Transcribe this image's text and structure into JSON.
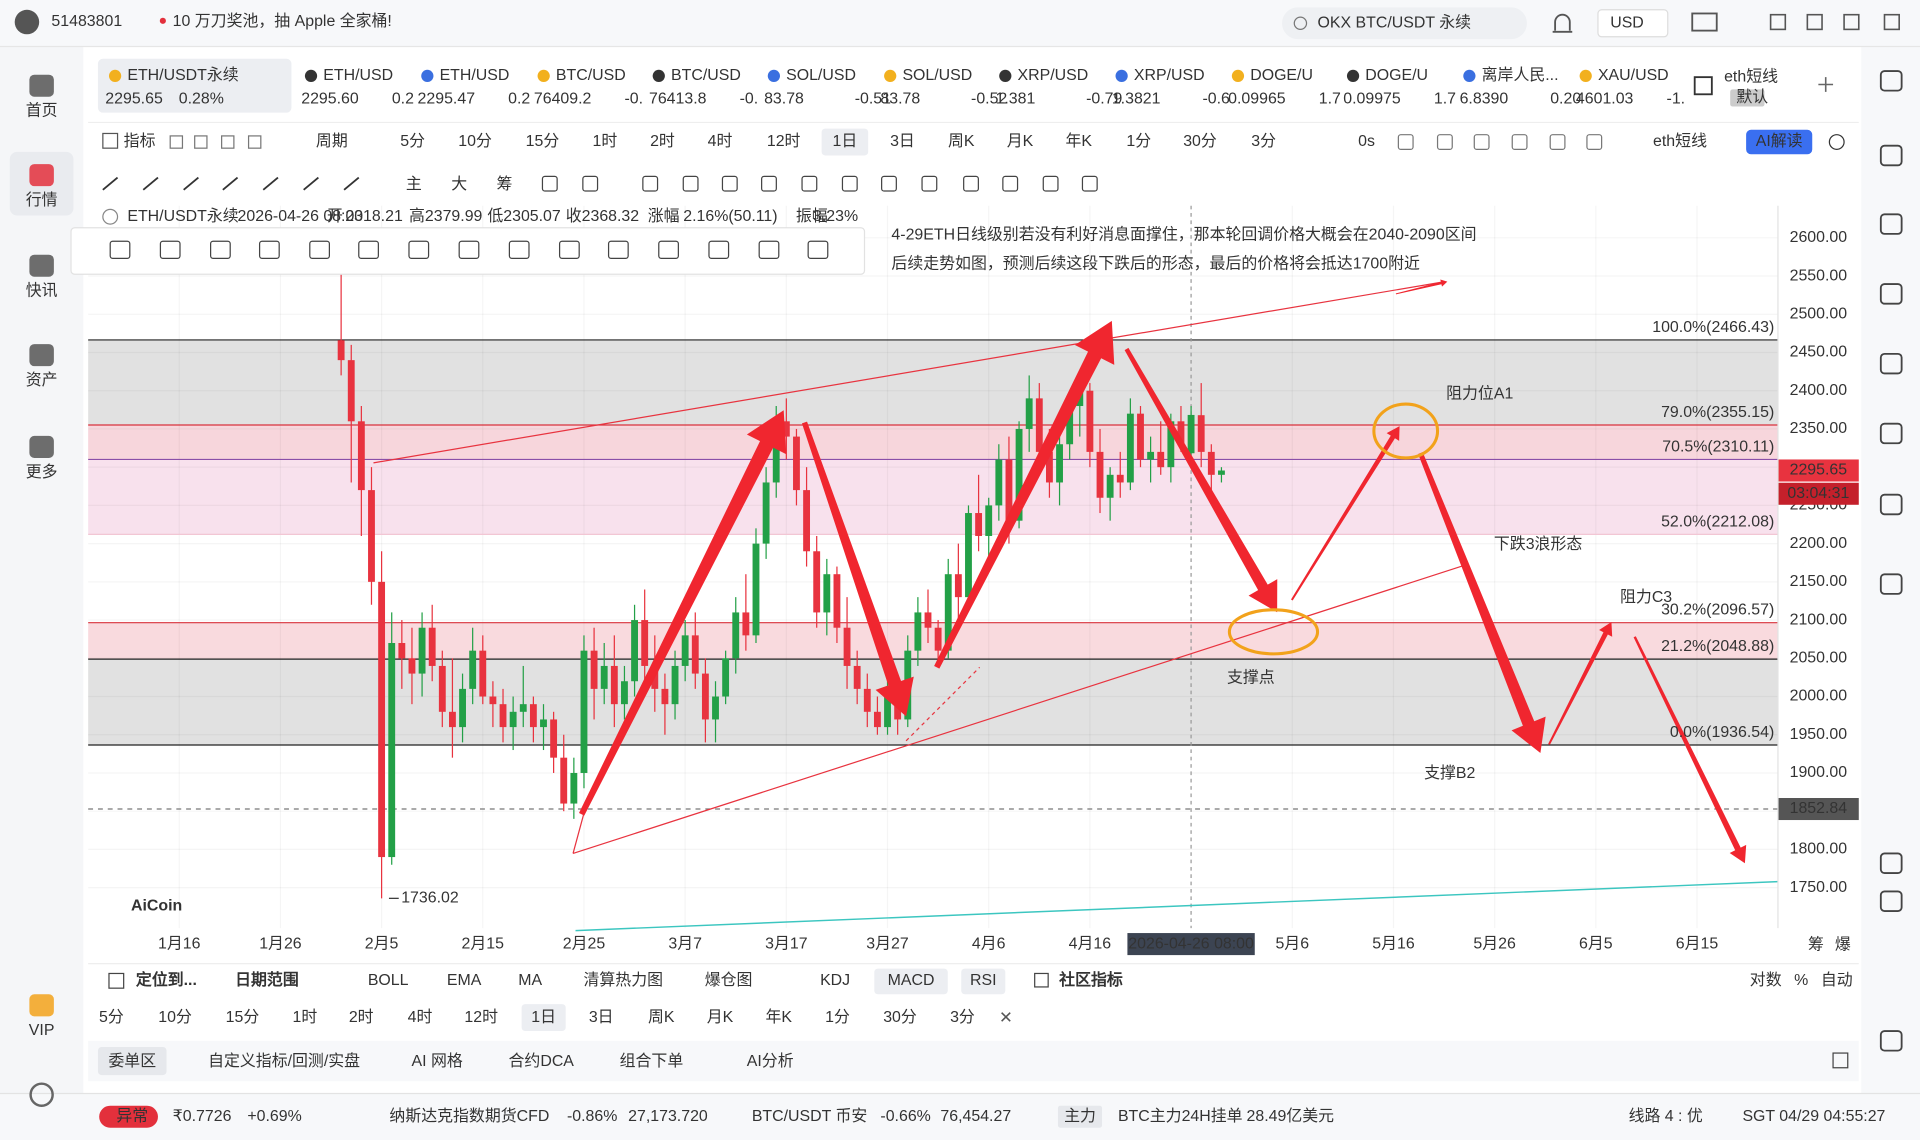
{
  "topbar": {
    "account": "51483801",
    "promo": "10 万刀奖池，抽 Apple 全家桶!",
    "search": "OKX BTC/USDT 永续",
    "currency": "USD"
  },
  "sidebar": [
    "首页",
    "行情",
    "快讯",
    "资产",
    "更多",
    "VIP"
  ],
  "tickers": [
    {
      "name": "ETH/USDT永续",
      "price": "2295.65",
      "change": "0.28%",
      "color": "#1f9a45"
    },
    {
      "name": "ETH/USD",
      "price": "2295.60",
      "change": "0.2",
      "color": "#222222"
    },
    {
      "name": "ETH/USD",
      "price": "2295.47",
      "change": "0.2",
      "color": "#e3303c"
    },
    {
      "name": "BTC/USD",
      "price": "76409.2",
      "change": "-0.",
      "color": "#e3303c"
    },
    {
      "name": "BTC/USD",
      "price": "76413.8",
      "change": "-0.",
      "color": "#e3303c"
    },
    {
      "name": "SOL/USD",
      "price": "83.78",
      "change": "-0.51",
      "color": "#e3303c"
    },
    {
      "name": "SOL/USD",
      "price": "83.78",
      "change": "-0.52",
      "color": "#222222"
    },
    {
      "name": "XRP/USD",
      "price": "1.381",
      "change": "-0.79",
      "color": "#e3303c"
    },
    {
      "name": "XRP/USD",
      "price": "1.3821",
      "change": "-0.6",
      "color": "#e3303c"
    },
    {
      "name": "DOGE/U",
      "price": "0.09965",
      "change": "1.7",
      "color": "#e3303c"
    },
    {
      "name": "DOGE/U",
      "price": "0.09975",
      "change": "1.7",
      "color": "#222222"
    },
    {
      "name": "离岸人民...",
      "price": "6.8390",
      "change": "0.20",
      "color": "#1f9a45"
    },
    {
      "name": "XAU/USD",
      "price": "4601.03",
      "change": "-1.",
      "color": "#1f9a45"
    }
  ],
  "layout_tab": {
    "name": "eth短线",
    "tag": "默认"
  },
  "toolbar": {
    "indicator": "指标",
    "period": "周期",
    "intervals": [
      "5分",
      "10分",
      "15分",
      "1时",
      "2时",
      "4时",
      "12时",
      "1日",
      "3日",
      "周K",
      "月K",
      "年K",
      "1分",
      "30分",
      "3分"
    ],
    "selected": "1日",
    "countdown": "0s",
    "layout": "eth短线",
    "ai": "AI解读"
  },
  "draw_tools": [
    "主",
    "大",
    "筹"
  ],
  "chart": {
    "type": "candlestick",
    "up_color": "#23a047",
    "down_color": "#e8333f",
    "info": [
      "ETH/USDT永续",
      "2026-04-26 08:00",
      "开",
      "2318.21",
      "高",
      "2379.99",
      "低",
      "2305.07",
      "收",
      "2368.32",
      "涨幅",
      "2.16%(50.11)",
      "振幅",
      "3.23%"
    ],
    "xlim": [
      "2026-01-07",
      "2026-06-23"
    ],
    "xticks": [
      {
        "value": "2026-01-16",
        "label": "1月16"
      },
      {
        "value": "2026-01-26",
        "label": "1月26"
      },
      {
        "value": "2026-02-05",
        "label": "2月5"
      },
      {
        "value": "2026-02-15",
        "label": "2月15"
      },
      {
        "value": "2026-02-25",
        "label": "2月25"
      },
      {
        "value": "2026-03-07",
        "label": "3月7"
      },
      {
        "value": "2026-03-17",
        "label": "3月17"
      },
      {
        "value": "2026-03-27",
        "label": "3月27"
      },
      {
        "value": "2026-04-06",
        "label": "4月6"
      },
      {
        "value": "2026-04-16",
        "label": "4月16"
      },
      {
        "value": "2026-05-06",
        "label": "5月6"
      },
      {
        "value": "2026-05-16",
        "label": "5月16"
      },
      {
        "value": "2026-05-26",
        "label": "5月26"
      },
      {
        "value": "2026-06-05",
        "label": "6月5"
      },
      {
        "value": "2026-06-15",
        "label": "6月15"
      }
    ],
    "crosshair": {
      "value": "2026-04-26T08:00",
      "label": "2026-04-26 08:00"
    },
    "ylim": [
      1697,
      2642
    ],
    "yticks": [
      {
        "value": 1750,
        "label": "1750.00"
      },
      {
        "value": 1800,
        "label": "1800.00"
      },
      {
        "value": 1850,
        "label": "1850.00"
      },
      {
        "value": 1900,
        "label": "1900.00"
      },
      {
        "value": 1950,
        "label": "1950.00"
      },
      {
        "value": 2000,
        "label": "2000.00"
      },
      {
        "value": 2050,
        "label": "2050.00"
      },
      {
        "value": 2100,
        "label": "2100.00"
      },
      {
        "value": 2150,
        "label": "2150.00"
      },
      {
        "value": 2200,
        "label": "2200.00"
      },
      {
        "value": 2250,
        "label": "2250.00"
      },
      {
        "value": 2300,
        "label": "2300.00"
      },
      {
        "value": 2350,
        "label": "2350.00"
      },
      {
        "value": 2400,
        "label": "2400.00"
      },
      {
        "value": 2450,
        "label": "2450.00"
      },
      {
        "value": 2500,
        "label": "2500.00"
      },
      {
        "value": 2550,
        "label": "2550.00"
      },
      {
        "value": 2600,
        "label": "2600.00"
      }
    ],
    "fib": [
      {
        "value": 2466.43,
        "label": "100.0%(2466.43)",
        "color": "#222222"
      },
      {
        "value": 2355.15,
        "label": "79.0%(2355.15)",
        "color": "#d8323c"
      },
      {
        "value": 2310.11,
        "label": "70.5%(2310.11)",
        "color": "#8a4fa8"
      },
      {
        "value": 2212.08,
        "label": "52.0%(2212.08)",
        "color": "#f2c6d4"
      },
      {
        "value": 2096.57,
        "label": "30.2%(2096.57)",
        "color": "#d8323c"
      },
      {
        "value": 2048.88,
        "label": "21.2%(2048.88)",
        "color": "#222222"
      },
      {
        "value": 1936.54,
        "label": "0.0%(1936.54)",
        "color": "#222222"
      }
    ],
    "fib_bands": [
      "#dcdcdc",
      "#f6cfd6",
      "#f7dcea",
      "#ffffff",
      "#f8d4d8",
      "#dcdcdc"
    ],
    "last_price": {
      "value": 2295.65,
      "countdown": "03:04:31"
    },
    "marker_price": 1852.84,
    "low": {
      "date": "2026-02-05",
      "value": 1736.02
    },
    "logo": "AiCoin",
    "corner_tabs": [
      "筹",
      "爆"
    ],
    "notes": {
      "line1": "4-29ETH日线级别若没有利好消息面撑住，那本轮回调价格大概会在2040-2090区间",
      "line2": "后续走势如图，预测后续这段下跌后的形态，最后的价格将会抵达1700附近",
      "resistance_a1": "阻力位A1",
      "wave": "下跌3浪形态",
      "resistance_c3": "阻力C3",
      "support": "支撑点",
      "support_b2": "支撑B2"
    },
    "candles": [
      [
        "2026-02-01",
        2466,
        2610,
        2420,
        2440
      ],
      [
        "2026-02-02",
        2440,
        2460,
        2280,
        2360
      ],
      [
        "2026-02-03",
        2360,
        2380,
        2210,
        2270
      ],
      [
        "2026-02-04",
        2270,
        2300,
        2120,
        2150
      ],
      [
        "2026-02-05",
        2150,
        2190,
        1736.02,
        1790
      ],
      [
        "2026-02-06",
        1790,
        2110,
        1780,
        2070
      ],
      [
        "2026-02-07",
        2070,
        2100,
        2010,
        2050
      ],
      [
        "2026-02-08",
        2050,
        2090,
        1990,
        2030
      ],
      [
        "2026-02-09",
        2030,
        2110,
        2000,
        2090
      ],
      [
        "2026-02-10",
        2090,
        2120,
        2020,
        2040
      ],
      [
        "2026-02-11",
        2040,
        2060,
        1960,
        1980
      ],
      [
        "2026-02-12",
        1980,
        2050,
        1920,
        1960
      ],
      [
        "2026-02-13",
        1960,
        2030,
        1940,
        2010
      ],
      [
        "2026-02-14",
        2010,
        2090,
        1990,
        2060
      ],
      [
        "2026-02-15",
        2060,
        2080,
        1990,
        2000
      ],
      [
        "2026-02-16",
        2000,
        2020,
        1960,
        1990
      ],
      [
        "2026-02-17",
        1990,
        2010,
        1940,
        1960
      ],
      [
        "2026-02-18",
        1960,
        2000,
        1930,
        1980
      ],
      [
        "2026-02-19",
        1980,
        2040,
        1960,
        1990
      ],
      [
        "2026-02-20",
        1990,
        2000,
        1940,
        1960
      ],
      [
        "2026-02-21",
        1960,
        1990,
        1930,
        1970
      ],
      [
        "2026-02-22",
        1970,
        1980,
        1900,
        1920
      ],
      [
        "2026-02-23",
        1920,
        1950,
        1850,
        1860
      ],
      [
        "2026-02-24",
        1860,
        1920,
        1840,
        1900
      ],
      [
        "2026-02-25",
        1900,
        2080,
        1880,
        2060
      ],
      [
        "2026-02-26",
        2060,
        2090,
        1970,
        2010
      ],
      [
        "2026-02-27",
        2010,
        2070,
        1990,
        2040
      ],
      [
        "2026-02-28",
        2040,
        2080,
        1960,
        1990
      ],
      [
        "2026-03-01",
        1990,
        2040,
        1970,
        2020
      ],
      [
        "2026-03-02",
        2020,
        2120,
        2000,
        2100
      ],
      [
        "2026-03-03",
        2100,
        2140,
        2020,
        2040
      ],
      [
        "2026-03-04",
        2040,
        2080,
        1980,
        2010
      ],
      [
        "2026-03-05",
        2010,
        2030,
        1950,
        1990
      ],
      [
        "2026-03-06",
        1990,
        2060,
        1970,
        2040
      ],
      [
        "2026-03-07",
        2040,
        2100,
        2020,
        2080
      ],
      [
        "2026-03-08",
        2080,
        2110,
        2010,
        2030
      ],
      [
        "2026-03-09",
        2030,
        2050,
        1940,
        1970
      ],
      [
        "2026-03-10",
        1970,
        2020,
        1940,
        2000
      ],
      [
        "2026-03-11",
        2000,
        2060,
        1990,
        2050
      ],
      [
        "2026-03-12",
        2050,
        2130,
        2030,
        2110
      ],
      [
        "2026-03-13",
        2110,
        2160,
        2060,
        2080
      ],
      [
        "2026-03-14",
        2080,
        2220,
        2070,
        2200
      ],
      [
        "2026-03-15",
        2200,
        2300,
        2180,
        2280
      ],
      [
        "2026-03-16",
        2280,
        2380,
        2260,
        2360
      ],
      [
        "2026-03-17",
        2360,
        2390,
        2310,
        2340
      ],
      [
        "2026-03-18",
        2340,
        2350,
        2250,
        2270
      ],
      [
        "2026-03-19",
        2270,
        2300,
        2170,
        2190
      ],
      [
        "2026-03-20",
        2190,
        2210,
        2090,
        2110
      ],
      [
        "2026-03-21",
        2110,
        2180,
        2080,
        2160
      ],
      [
        "2026-03-22",
        2160,
        2170,
        2070,
        2090
      ],
      [
        "2026-03-23",
        2090,
        2130,
        2010,
        2040
      ],
      [
        "2026-03-24",
        2040,
        2060,
        1990,
        2010
      ],
      [
        "2026-03-25",
        2010,
        2030,
        1960,
        1980
      ],
      [
        "2026-03-26",
        1980,
        2000,
        1950,
        1960
      ],
      [
        "2026-03-27",
        1960,
        2030,
        1950,
        2010
      ],
      [
        "2026-03-28",
        2010,
        2020,
        1950,
        1970
      ],
      [
        "2026-03-29",
        1970,
        2080,
        1960,
        2060
      ],
      [
        "2026-03-30",
        2060,
        2130,
        2040,
        2110
      ],
      [
        "2026-03-31",
        2110,
        2140,
        2070,
        2090
      ],
      [
        "2026-04-01",
        2090,
        2100,
        2040,
        2060
      ],
      [
        "2026-04-02",
        2060,
        2180,
        2050,
        2160
      ],
      [
        "2026-04-03",
        2160,
        2200,
        2100,
        2130
      ],
      [
        "2026-04-04",
        2130,
        2250,
        2120,
        2240
      ],
      [
        "2026-04-05",
        2240,
        2290,
        2190,
        2210
      ],
      [
        "2026-04-06",
        2210,
        2260,
        2170,
        2250
      ],
      [
        "2026-04-07",
        2250,
        2330,
        2230,
        2310
      ],
      [
        "2026-04-08",
        2310,
        2340,
        2200,
        2230
      ],
      [
        "2026-04-09",
        2230,
        2360,
        2220,
        2350
      ],
      [
        "2026-04-10",
        2350,
        2420,
        2320,
        2390
      ],
      [
        "2026-04-11",
        2390,
        2410,
        2300,
        2320
      ],
      [
        "2026-04-12",
        2320,
        2350,
        2260,
        2280
      ],
      [
        "2026-04-13",
        2280,
        2340,
        2250,
        2330
      ],
      [
        "2026-04-14",
        2330,
        2400,
        2310,
        2380
      ],
      [
        "2026-04-15",
        2380,
        2420,
        2340,
        2400
      ],
      [
        "2026-04-16",
        2400,
        2410,
        2300,
        2320
      ],
      [
        "2026-04-17",
        2320,
        2350,
        2240,
        2260
      ],
      [
        "2026-04-18",
        2260,
        2300,
        2230,
        2290
      ],
      [
        "2026-04-19",
        2290,
        2320,
        2260,
        2280
      ],
      [
        "2026-04-20",
        2280,
        2390,
        2270,
        2370
      ],
      [
        "2026-04-21",
        2370,
        2380,
        2300,
        2310
      ],
      [
        "2026-04-22",
        2310,
        2340,
        2280,
        2320
      ],
      [
        "2026-04-23",
        2320,
        2360,
        2290,
        2300
      ],
      [
        "2026-04-24",
        2300,
        2370,
        2280,
        2360
      ],
      [
        "2026-04-25",
        2360,
        2380,
        2320,
        2330
      ],
      [
        "2026-04-26",
        2318.21,
        2379.99,
        2305.07,
        2368.32
      ],
      [
        "2026-04-27",
        2368,
        2410,
        2300,
        2320
      ],
      [
        "2026-04-28",
        2320,
        2330,
        2270,
        2290
      ],
      [
        "2026-04-29",
        2290,
        2300,
        2280,
        2295.65
      ]
    ]
  },
  "bottom": {
    "locate": "定位到...",
    "date_range": "日期范围",
    "indicators": [
      "BOLL",
      "EMA",
      "MA",
      "清算热力图",
      "爆仓图",
      "KDJ",
      "MACD",
      "RSI"
    ],
    "community": "社区指标",
    "scale": [
      "对数",
      "%",
      "自动"
    ],
    "tabs": [
      "委单区",
      "自定义指标/回测/实盘",
      "AI 网格",
      "合约DCA",
      "组合下单",
      "AI分析"
    ]
  },
  "status": {
    "alert": "异常",
    "coin_price": "₹0.7726",
    "coin_change": "+0.69%",
    "nasdaq": "纳斯达克指数期货CFD",
    "nasdaq_change": "-0.86%",
    "nasdaq_price": "27,173.720",
    "btc": "BTC/USDT 币安",
    "btc_change": "-0.66%",
    "btc_price": "76,454.27",
    "main": "主力",
    "main_label": "BTC主力24H挂单",
    "main_value": "28.49亿美元",
    "line": "线路 4 : 优",
    "clock": "SGT 04/29 04:55:27"
  }
}
